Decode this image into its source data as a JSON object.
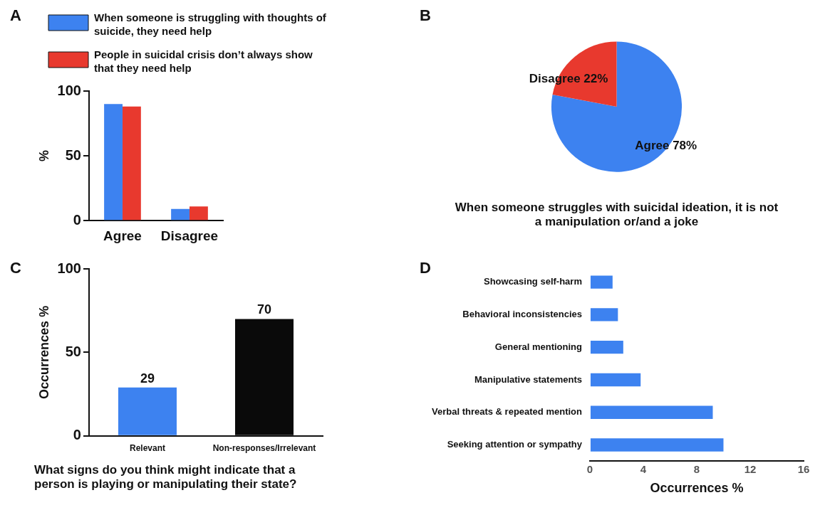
{
  "chart_data": [
    {
      "type": "bar",
      "categories": [
        "Agree",
        "Disagree"
      ],
      "series": [
        {
          "name": "When someone is struggling with thoughts of suicide, they need help",
          "color": "#3d82f0",
          "values": [
            90,
            9
          ]
        },
        {
          "name": "People in suicidal crisis don’t always show that they need help",
          "color": "#e8392e",
          "values": [
            88,
            11
          ]
        }
      ],
      "ylabel": "%",
      "ylim": [
        0,
        100
      ],
      "yticks": [
        0,
        50,
        100
      ],
      "grid": false,
      "legend": "top",
      "annotations": [
        "A"
      ]
    },
    {
      "type": "pie",
      "title": "When someone struggles with suicidal ideation, it is not a manipulation or/and a joke",
      "categories": [
        "Agree",
        "Disagree"
      ],
      "values": [
        78,
        22
      ],
      "value_labels": [
        "78%",
        "22%"
      ],
      "colors": [
        "#3d82f0",
        "#e8392e"
      ],
      "annotations": [
        "B"
      ]
    },
    {
      "type": "bar",
      "title": "What signs do you think might indicate that a person is playing or manipulating their state?",
      "categories": [
        "Relevant",
        "Non-responses/Irrelevant"
      ],
      "values": [
        29,
        70
      ],
      "colors": [
        "#3d82f0",
        "#0a0a0a"
      ],
      "data_labels": true,
      "ylabel": "Occurrences %",
      "ylim": [
        0,
        100
      ],
      "yticks": [
        0,
        50,
        100
      ],
      "grid": false,
      "annotations": [
        "C"
      ]
    },
    {
      "type": "bar",
      "orientation": "horizontal",
      "categories": [
        "Showcasing self-harm",
        "Behavioral inconsistencies",
        "General mentioning",
        "Manipulative statements",
        "Verbal threats & repeated mention",
        "Seeking attention or sympathy"
      ],
      "values": [
        1.7,
        2.1,
        2.5,
        3.8,
        9.2,
        10
      ],
      "color": "#3d82f0",
      "xlabel": "Occurrences %",
      "xlim": [
        0,
        16
      ],
      "xticks": [
        0,
        4,
        8,
        12,
        16
      ],
      "grid": false,
      "annotations": [
        "D"
      ]
    }
  ]
}
